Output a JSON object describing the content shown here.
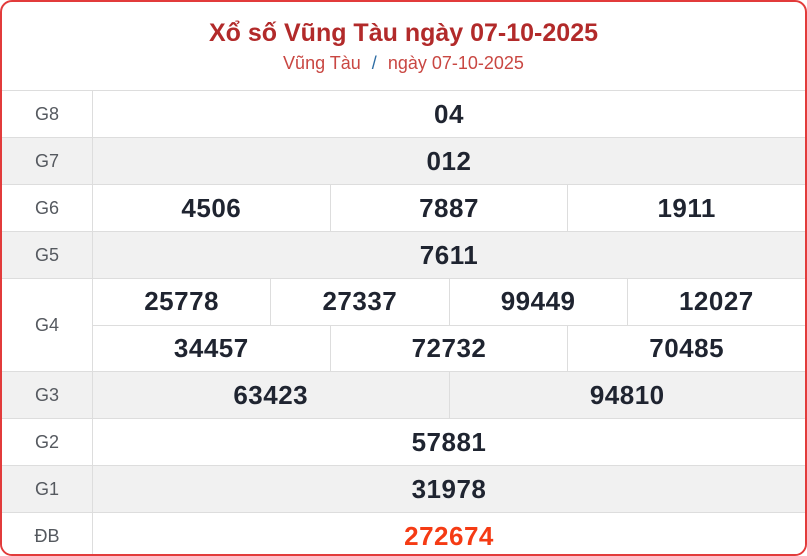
{
  "header": {
    "title": "Xổ số Vũng Tàu ngày 07-10-2025",
    "breadcrumb": {
      "region": "Vũng Tàu",
      "separator": "/",
      "date": "ngày 07-10-2025"
    }
  },
  "colors": {
    "card_border": "#e23b3b",
    "title_red": "#b22a2a",
    "subtitle_red": "#c94742",
    "separator_blue": "#2e6da4",
    "row_shade": "#f1f1f1",
    "grid_line": "#dddddd",
    "value_text": "#1f2430",
    "label_text": "#55595f",
    "special_value": "#f53b14"
  },
  "table": {
    "rows": [
      {
        "label": "G8",
        "shade": false,
        "special": false,
        "groups": [
          [
            "04"
          ]
        ]
      },
      {
        "label": "G7",
        "shade": true,
        "special": false,
        "groups": [
          [
            "012"
          ]
        ]
      },
      {
        "label": "G6",
        "shade": false,
        "special": false,
        "groups": [
          [
            "4506",
            "7887",
            "1911"
          ]
        ]
      },
      {
        "label": "G5",
        "shade": true,
        "special": false,
        "groups": [
          [
            "7611"
          ]
        ]
      },
      {
        "label": "G4",
        "shade": false,
        "special": false,
        "groups": [
          [
            "25778",
            "27337",
            "99449",
            "12027"
          ],
          [
            "34457",
            "72732",
            "70485"
          ]
        ]
      },
      {
        "label": "G3",
        "shade": true,
        "special": false,
        "groups": [
          [
            "63423",
            "94810"
          ]
        ]
      },
      {
        "label": "G2",
        "shade": false,
        "special": false,
        "groups": [
          [
            "57881"
          ]
        ]
      },
      {
        "label": "G1",
        "shade": true,
        "special": false,
        "groups": [
          [
            "31978"
          ]
        ]
      },
      {
        "label": "ĐB",
        "shade": false,
        "special": true,
        "groups": [
          [
            "272674"
          ]
        ]
      }
    ]
  }
}
